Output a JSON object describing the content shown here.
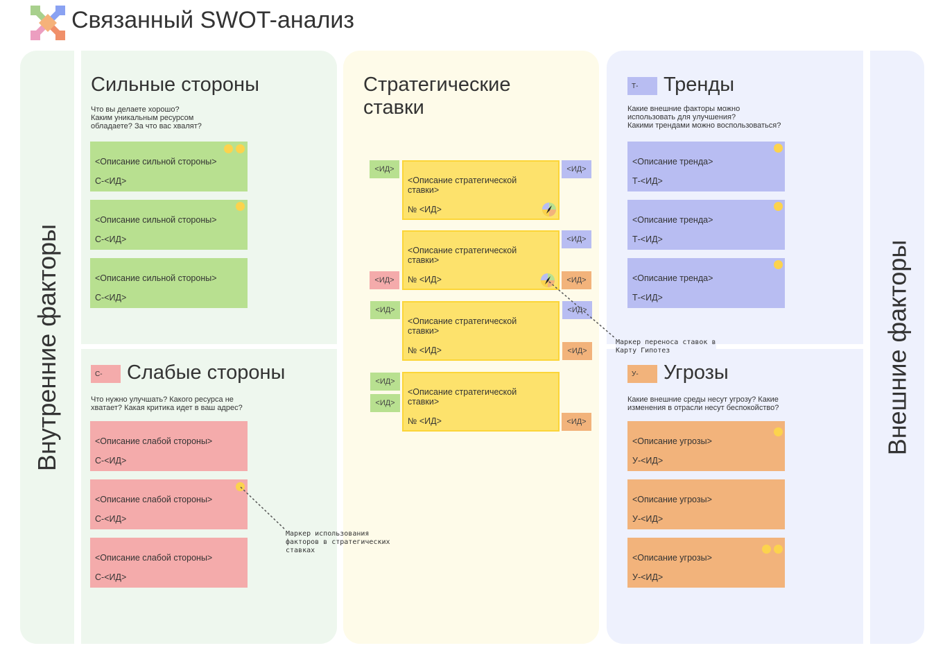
{
  "title": "Связанный SWOT-анализ",
  "colors": {
    "strength": "#b8e090",
    "weakness": "#f4abab",
    "trend": "#b8bdf2",
    "threat": "#f2b37b",
    "strategy": "#fde26c",
    "marker": "#fcd34d"
  },
  "internal_label": "Внутренние факторы",
  "external_label": "Внешние факторы",
  "strengths": {
    "title": "Сильные стороны",
    "question": "Что вы делаете хорошо?\nКаким уникальным ресурсом\nобладаете? За что вас хвалят?",
    "cards": [
      {
        "desc": "<Описание сильной стороны>",
        "id": "С-<ИД>",
        "markers": 2
      },
      {
        "desc": "<Описание сильной стороны>",
        "id": "С-<ИД>",
        "markers": 1
      },
      {
        "desc": "<Описание сильной стороны>",
        "id": "С-<ИД>",
        "markers": 0
      }
    ]
  },
  "weaknesses": {
    "prefix": "С-",
    "title": "Слабые стороны",
    "question": "Что нужно улучшать? Какого ресурса не\nхватает? Какая критика идет в ваш адрес?",
    "cards": [
      {
        "desc": "<Описание слабой стороны>",
        "id": "С-<ИД>",
        "markers": 0
      },
      {
        "desc": "<Описание слабой стороны>",
        "id": "С-<ИД>",
        "markers": 1
      },
      {
        "desc": "<Описание слабой стороны>",
        "id": "С-<ИД>",
        "markers": 0
      }
    ]
  },
  "strategy": {
    "title": "Стратегические\nставки",
    "cards": [
      {
        "desc": "<Описание стратегической ставки>",
        "id": "№ <ИД>"
      },
      {
        "desc": "<Описание стратегической ставки>",
        "id": "№ <ИД>"
      },
      {
        "desc": "<Описание стратегической ставки>",
        "id": "№ <ИД>"
      },
      {
        "desc": "<Описание стратегической ставки>",
        "id": "№ <ИД>"
      }
    ],
    "tag_label": "<ИД>"
  },
  "trends": {
    "prefix": "Т-",
    "title": "Тренды",
    "question": "Какие внешние факторы можно\nиспользовать для улучшения?\nКакими трендами можно воспользоваться?",
    "cards": [
      {
        "desc": "<Описание тренда>",
        "id": "Т-<ИД>",
        "markers": 1
      },
      {
        "desc": "<Описание тренда>",
        "id": "Т-<ИД>",
        "markers": 1
      },
      {
        "desc": "<Описание тренда>",
        "id": "Т-<ИД>",
        "markers": 1
      }
    ]
  },
  "threats": {
    "prefix": "У-",
    "title": "Угрозы",
    "question": "Какие внешние среды несут угрозу? Какие\nизменения в отрасли несут беспокойство?",
    "cards": [
      {
        "desc": "<Описание угрозы>",
        "id": "У-<ИД>",
        "markers": 1
      },
      {
        "desc": "<Описание угрозы>",
        "id": "У-<ИД>",
        "markers": 0
      },
      {
        "desc": "<Описание угрозы>",
        "id": "У-<ИД>",
        "markers": 2
      }
    ]
  },
  "notes": {
    "usage_marker": "Маркер использования\nфакторов в стратегических\nставках",
    "transfer_marker": "Маркер переноса ставок в\nКарту Гипотез"
  }
}
